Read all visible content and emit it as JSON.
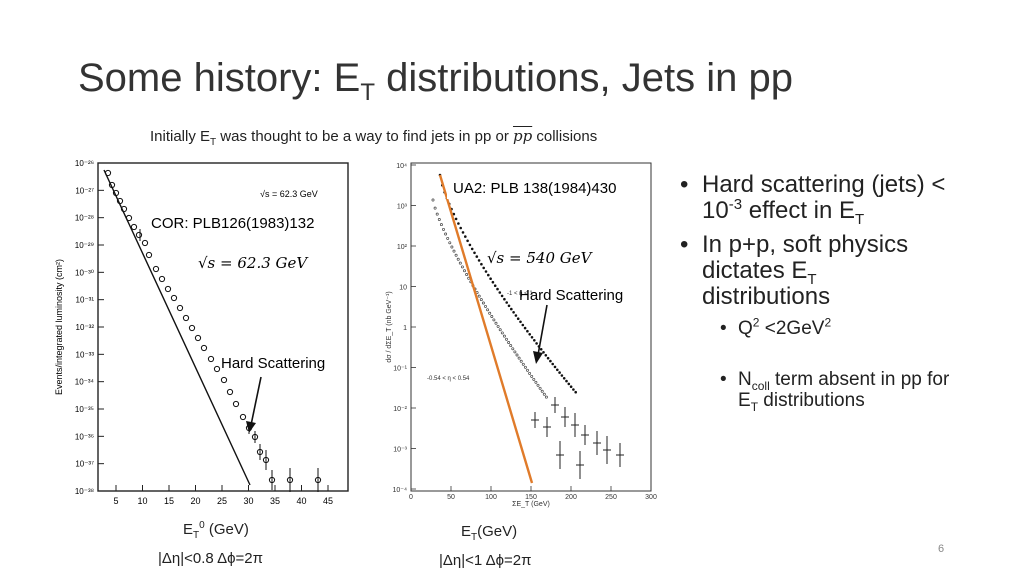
{
  "slide": {
    "title_pre": "Some history: E",
    "title_sub": "T",
    "title_post": " distributions, Jets in pp",
    "subtitle_pre": "Initially  E",
    "subtitle_sub": "T",
    "subtitle_mid": " was thought to be a way to find jets in pp or ",
    "subtitle_pp": "pp",
    "subtitle_post": " collisions",
    "page_number": "6"
  },
  "left_plot": {
    "reference": "COR: PLB126(1983)132",
    "sqrt_s": "√s = 62.3 GeV",
    "inset_label": "√s = 62.3 GeV",
    "annotation": "Hard Scattering",
    "ylabel": "Events/integrated luminosity (cm²)",
    "y_ticks": [
      "10⁻²⁶",
      "10⁻²⁷",
      "10⁻²⁸",
      "10⁻²⁹",
      "10⁻³⁰",
      "10⁻³¹",
      "10⁻³²",
      "10⁻³³",
      "10⁻³⁴",
      "10⁻³⁵",
      "10⁻³⁶",
      "10⁻³⁷",
      "10⁻³⁸"
    ],
    "x_ticks": [
      "5",
      "10",
      "15",
      "20",
      "25",
      "30",
      "35",
      "40",
      "45"
    ],
    "caption_et_pre": "E",
    "caption_et_sub": "T",
    "caption_et_sup": "0",
    "caption_et_post": " (GeV)",
    "caption_cuts": "|Δη|<0.8   Δϕ=2π"
  },
  "right_plot": {
    "reference": "UA2: PLB 138(1984)430",
    "sqrt_s": "√s = 540 GeV",
    "annotation": "Hard Scattering",
    "region_label_1": "-1 < η < 1",
    "region_label_2": "-0.54 < η < 0.54",
    "ylabel": "dσ / dΣE_T  (nb GeV⁻¹)",
    "xlabel": "ΣE_T  (GeV)",
    "y_ticks": [
      "10⁴",
      "10³",
      "10²",
      "10",
      "1",
      "10⁻¹",
      "10⁻²",
      "10⁻³",
      "10⁻⁴"
    ],
    "x_ticks": [
      "0",
      "50",
      "100",
      "150",
      "200",
      "250",
      "300"
    ],
    "caption_et_pre": "E",
    "caption_et_sub": "T",
    "caption_et_post": "(GeV)",
    "caption_cuts": "|Δη|<1   Δϕ=2π",
    "fit_color": "#e07b2a"
  },
  "bullets": {
    "b1_pre": "Hard scattering (jets) < 10",
    "b1_sup": "-3",
    "b1_mid": " effect in E",
    "b1_sub": "T",
    "b2_pre": "In p+p, soft physics dictates E",
    "b2_sub": "T",
    "b2_post": " distributions",
    "b3_pre": "Q",
    "b3_sup": "2",
    "b3_mid": " <2GeV",
    "b3_sup2": "2",
    "b4_pre": "N",
    "b4_sub": "coll",
    "b4_mid": " term absent in pp for E",
    "b4_sub2": "T",
    "b4_post": " distributions"
  }
}
